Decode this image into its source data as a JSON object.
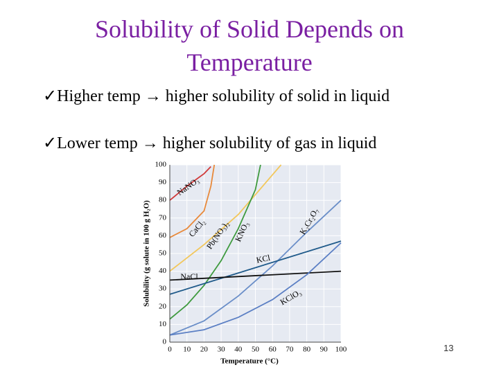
{
  "slide": {
    "title": "Solubility of Solid Depends on Temperature",
    "bullets": [
      {
        "marker": "✓",
        "text": "Higher temp → higher solubility of solid in liquid"
      },
      {
        "marker": "✓",
        "text": "Lower temp → higher solubility of gas in liquid"
      }
    ],
    "page_number": "13"
  },
  "chart_data": {
    "type": "line",
    "x_label": "Temperature (°C)",
    "y_label": "Solubility (g solute in 100 g H₂O)",
    "xlim": [
      0,
      100
    ],
    "ylim": [
      0,
      100
    ],
    "xticks": [
      0,
      10,
      20,
      30,
      40,
      50,
      60,
      70,
      80,
      90,
      100
    ],
    "yticks": [
      0,
      10,
      20,
      30,
      40,
      50,
      60,
      70,
      80,
      90,
      100
    ],
    "grid": true,
    "series": [
      {
        "name": "NaNO₃",
        "color": "#d03a3a",
        "x": [
          0,
          10,
          20,
          24
        ],
        "values": [
          80,
          88,
          95,
          99
        ]
      },
      {
        "name": "CaCl₂",
        "color": "#e8893a",
        "x": [
          0,
          10,
          20,
          24,
          26
        ],
        "values": [
          59,
          64,
          74,
          88,
          100
        ]
      },
      {
        "name": "Pb(NO₃)₂",
        "color": "#f2c75c",
        "x": [
          0,
          20,
          40,
          65
        ],
        "values": [
          40,
          55,
          72,
          100
        ]
      },
      {
        "name": "KNO₃",
        "color": "#3e9a3e",
        "x": [
          0,
          10,
          20,
          30,
          40,
          50,
          53
        ],
        "values": [
          13,
          21,
          32,
          46,
          64,
          86,
          100
        ]
      },
      {
        "name": "K₂Cr₂O₇",
        "color": "#6a8ec8",
        "x": [
          0,
          20,
          40,
          60,
          80,
          100
        ],
        "values": [
          4,
          12,
          26,
          43,
          62,
          80
        ]
      },
      {
        "name": "KCl",
        "color": "#1f5a8a",
        "x": [
          0,
          50,
          100
        ],
        "values": [
          27,
          42,
          57
        ]
      },
      {
        "name": "NaCl",
        "color": "#111111",
        "x": [
          0,
          100
        ],
        "values": [
          35,
          40
        ]
      },
      {
        "name": "KClO₃",
        "color": "#5b7fc4",
        "x": [
          0,
          20,
          40,
          60,
          80,
          100
        ],
        "values": [
          4,
          7,
          14,
          24,
          38,
          56
        ]
      }
    ]
  }
}
